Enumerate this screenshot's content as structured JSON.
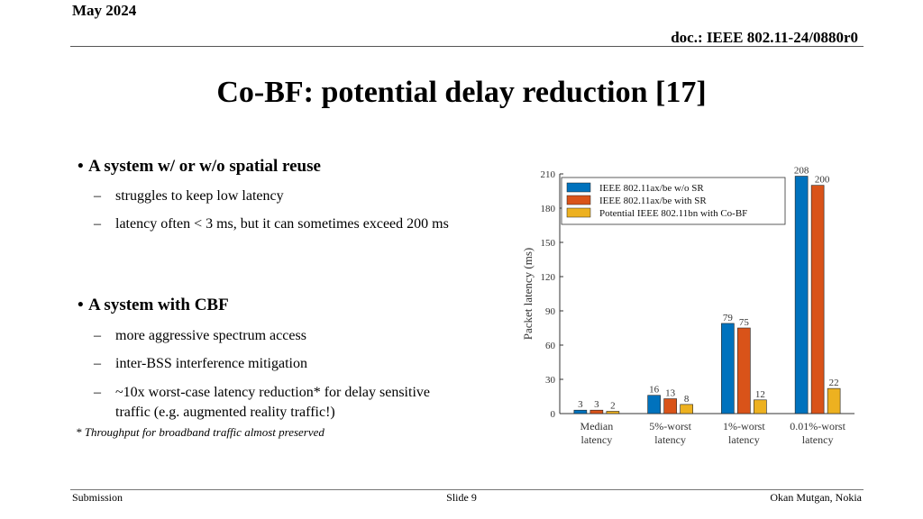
{
  "header": {
    "date": "May 2024",
    "doc": "doc.: IEEE 802.11-24/0880r0"
  },
  "title": "Co-BF: potential delay reduction [17]",
  "bullets": [
    {
      "text": "A system w/ or w/o spatial reuse",
      "subs": [
        "struggles to keep low latency",
        "latency often < 3 ms, but it can sometimes exceed 200 ms"
      ]
    },
    {
      "text": "A system with CBF",
      "subs": [
        "more aggressive spectrum access",
        "inter-BSS interference mitigation",
        "~10x worst-case latency reduction* for delay sensitive traffic (e.g. augmented reality traffic!)"
      ]
    }
  ],
  "footnote": "* Throughput for broadband traffic almost preserved",
  "footer": {
    "left": "Submission",
    "center": "Slide 9",
    "right": "Okan Mutgan, Nokia"
  },
  "chart_data": {
    "type": "bar",
    "ylabel": "Packet latency (ms)",
    "ylim": [
      0,
      210
    ],
    "yticks": [
      0,
      30,
      60,
      90,
      120,
      150,
      180,
      210
    ],
    "categories": [
      [
        "Median",
        "latency"
      ],
      [
        "5%-worst",
        "latency"
      ],
      [
        "1%-worst",
        "latency"
      ],
      [
        "0.01%-worst",
        "latency"
      ]
    ],
    "series": [
      {
        "name": "IEEE 802.11ax/be w/o SR",
        "color": "#0072bd",
        "values": [
          3,
          16,
          79,
          208
        ]
      },
      {
        "name": "IEEE 802.11ax/be with SR",
        "color": "#d95319",
        "values": [
          3,
          13,
          75,
          200
        ]
      },
      {
        "name": "Potential IEEE 802.11bn with Co-BF",
        "color": "#edb120",
        "values": [
          2,
          8,
          12,
          22
        ]
      }
    ],
    "legend": "top-left"
  }
}
